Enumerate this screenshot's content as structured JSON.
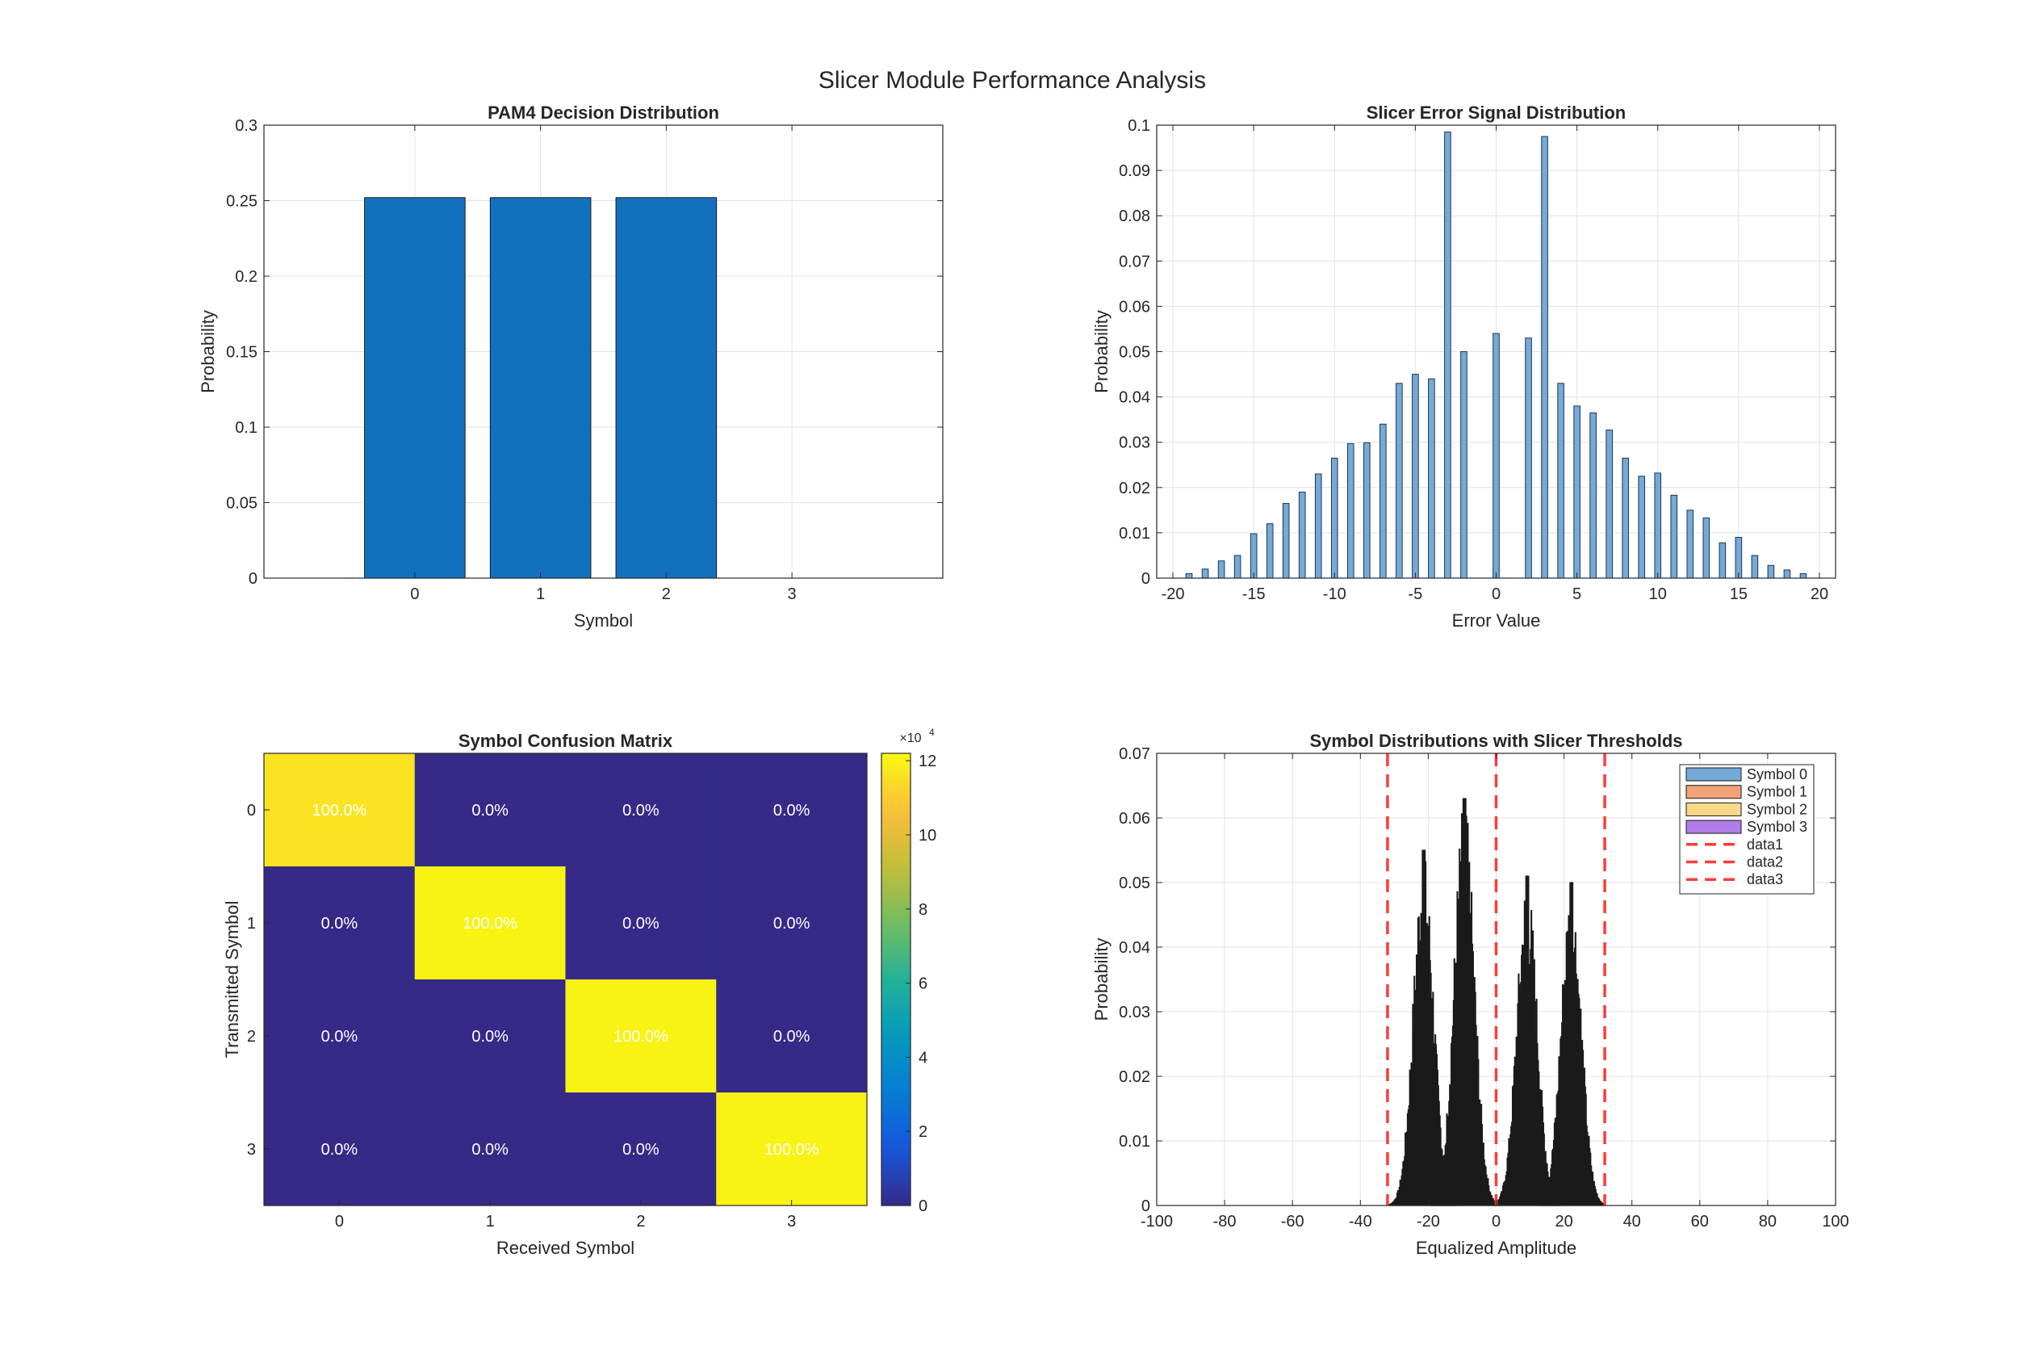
{
  "suptitle": "Slicer Module Performance Analysis",
  "colors": {
    "bar_blue": "#1271bf",
    "hist_blue": "#74a9d8",
    "threshold_red": "#ff3b3b",
    "parula_low": "#3e26a8",
    "parula_high": "#f9fb0e",
    "grid": "#e3e3e3",
    "axis": "#262626"
  },
  "chart_data": [
    {
      "type": "bar",
      "title": "PAM4 Decision Distribution",
      "xlabel": "Symbol",
      "ylabel": "Probability",
      "categories": [
        "0",
        "1",
        "2",
        "3"
      ],
      "values": [
        0.252,
        0.252,
        0.252,
        0
      ],
      "xlim": [
        -1.2,
        4.2
      ],
      "ylim": [
        0,
        0.3
      ],
      "yticks": [
        "0",
        "0.05",
        "0.1",
        "0.15",
        "0.2",
        "0.25",
        "0.3"
      ],
      "grid": true
    },
    {
      "type": "bar",
      "title": "Slicer Error Signal Distribution",
      "xlabel": "Error Value",
      "ylabel": "Probability",
      "xlim": [
        -21,
        21
      ],
      "ylim": [
        0,
        0.1
      ],
      "xticks": [
        "-20",
        "-15",
        "-10",
        "-5",
        "0",
        "5",
        "10",
        "15",
        "20"
      ],
      "yticks": [
        "0",
        "0.01",
        "0.02",
        "0.03",
        "0.04",
        "0.05",
        "0.06",
        "0.07",
        "0.08",
        "0.09",
        "0.1"
      ],
      "x": [
        -19,
        -18,
        -17,
        -16,
        -15,
        -14,
        -13,
        -12,
        -11,
        -10,
        -9,
        -8,
        -7,
        -6,
        -5,
        -4,
        -3,
        -2,
        0,
        2,
        3,
        4,
        5,
        6,
        7,
        8,
        9,
        10,
        11,
        12,
        13,
        14,
        15,
        16,
        17,
        18,
        19
      ],
      "values": [
        0.001,
        0.002,
        0.0038,
        0.005,
        0.0098,
        0.012,
        0.0165,
        0.019,
        0.023,
        0.0265,
        0.0297,
        0.0299,
        0.034,
        0.043,
        0.045,
        0.044,
        0.0985,
        0.05,
        0.054,
        0.053,
        0.0975,
        0.043,
        0.038,
        0.0365,
        0.0327,
        0.0265,
        0.0225,
        0.0232,
        0.0183,
        0.015,
        0.0133,
        0.0078,
        0.009,
        0.005,
        0.0028,
        0.0018,
        0.001
      ],
      "grid": true
    },
    {
      "type": "heatmap",
      "title": "Symbol Confusion Matrix",
      "xlabel": "Received Symbol",
      "ylabel": "Transmitted Symbol",
      "x_categories": [
        "0",
        "1",
        "2",
        "3"
      ],
      "y_categories": [
        "0",
        "1",
        "2",
        "3"
      ],
      "values": [
        [
          116000,
          0,
          0,
          0
        ],
        [
          0,
          120000,
          0,
          0
        ],
        [
          0,
          0,
          120000,
          0
        ],
        [
          0,
          0,
          0,
          120000
        ]
      ],
      "labels": [
        [
          "100.0%",
          "0.0%",
          "0.0%",
          "0.0%"
        ],
        [
          "0.0%",
          "100.0%",
          "0.0%",
          "0.0%"
        ],
        [
          "0.0%",
          "0.0%",
          "100.0%",
          "0.0%"
        ],
        [
          "0.0%",
          "0.0%",
          "0.0%",
          "100.0%"
        ]
      ],
      "colorbar": {
        "ticks": [
          "0",
          "2",
          "4",
          "6",
          "8",
          "10",
          "12"
        ],
        "exponent_label": "×10",
        "exponent": "4",
        "range": [
          0,
          12.2
        ]
      }
    },
    {
      "type": "bar",
      "title": "Symbol Distributions with Slicer Thresholds",
      "xlabel": "Equalized Amplitude",
      "ylabel": "Probability",
      "xlim": [
        -100,
        100
      ],
      "ylim": [
        0,
        0.07
      ],
      "xticks": [
        "-100",
        "-80",
        "-60",
        "-40",
        "-20",
        "0",
        "20",
        "40",
        "60",
        "80",
        "100"
      ],
      "yticks": [
        "0",
        "0.01",
        "0.02",
        "0.03",
        "0.04",
        "0.05",
        "0.06",
        "0.07"
      ],
      "series": [
        {
          "name": "Symbol 0",
          "color": "#74a9d8",
          "center": -21.5,
          "sigma": 3.0,
          "peak": 0.055
        },
        {
          "name": "Symbol 1",
          "color": "#f2a277",
          "center": -9.5,
          "sigma": 3.0,
          "peak": 0.063
        },
        {
          "name": "Symbol 2",
          "color": "#f8d889",
          "center": 9.0,
          "sigma": 3.0,
          "peak": 0.051
        },
        {
          "name": "Symbol 3",
          "color": "#b27ce8",
          "center": 22.0,
          "sigma": 3.0,
          "peak": 0.05
        }
      ],
      "thresholds": [
        {
          "name": "data1",
          "x": -32
        },
        {
          "name": "data2",
          "x": 0
        },
        {
          "name": "data3",
          "x": 32
        }
      ],
      "legend_position": "top-right",
      "grid": true
    }
  ]
}
